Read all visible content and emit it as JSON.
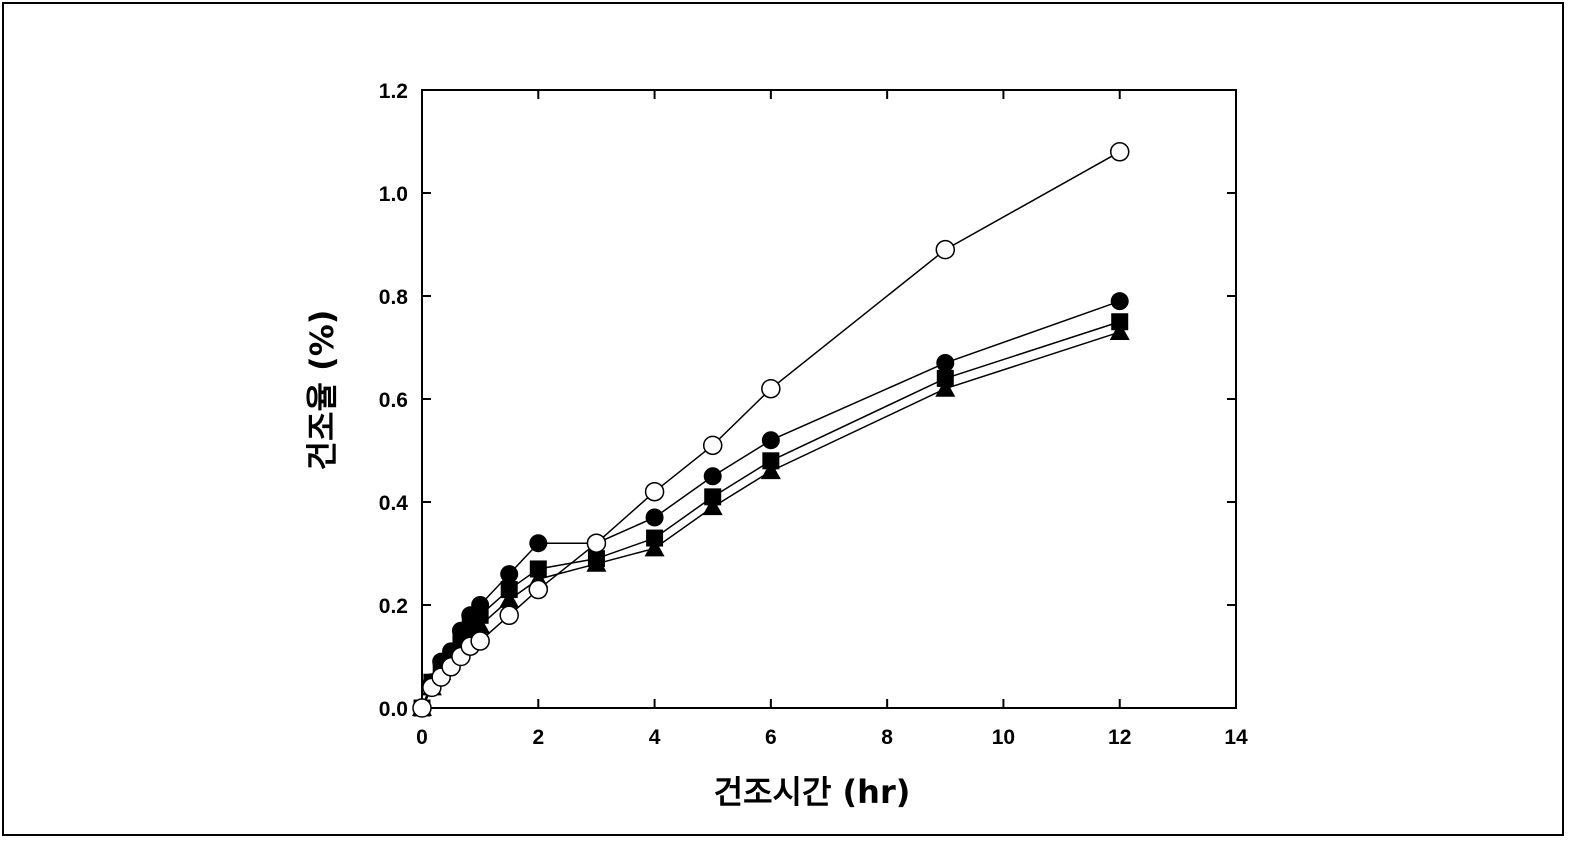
{
  "chart_data": {
    "type": "scatter",
    "xlabel": "건조시간 (hr)",
    "ylabel": "건조율 (%)",
    "xlim": [
      0,
      14
    ],
    "ylim": [
      0,
      1.2
    ],
    "xticks": [
      "0",
      "2",
      "4",
      "6",
      "8",
      "10",
      "12",
      "14"
    ],
    "yticks": [
      "0.0",
      "0.2",
      "0.4",
      "0.6",
      "0.8",
      "1.0",
      "1.2"
    ],
    "grid": false,
    "series": [
      {
        "marker": "open-circle",
        "x": [
          0,
          0.17,
          0.33,
          0.5,
          0.67,
          0.83,
          1,
          1.5,
          2,
          3,
          4,
          5,
          6,
          9,
          12
        ],
        "y": [
          0,
          0.04,
          0.06,
          0.08,
          0.1,
          0.12,
          0.13,
          0.18,
          0.23,
          0.32,
          0.42,
          0.51,
          0.62,
          0.89,
          1.08
        ]
      },
      {
        "marker": "filled-circle",
        "x": [
          0,
          0.17,
          0.33,
          0.5,
          0.67,
          0.83,
          1,
          1.5,
          2,
          3,
          4,
          5,
          6,
          9,
          12
        ],
        "y": [
          0,
          0.05,
          0.09,
          0.11,
          0.15,
          0.18,
          0.2,
          0.26,
          0.32,
          0.32,
          0.37,
          0.45,
          0.52,
          0.67,
          0.79
        ]
      },
      {
        "marker": "filled-square",
        "x": [
          0,
          0.17,
          0.33,
          0.5,
          0.67,
          0.83,
          1,
          1.5,
          2,
          3,
          4,
          5,
          6,
          9,
          12
        ],
        "y": [
          0,
          0.05,
          0.08,
          0.1,
          0.13,
          0.16,
          0.18,
          0.23,
          0.27,
          0.29,
          0.33,
          0.41,
          0.48,
          0.64,
          0.75
        ]
      },
      {
        "marker": "filled-triangle",
        "x": [
          0,
          0.17,
          0.33,
          0.5,
          0.67,
          0.83,
          1,
          1.5,
          2,
          3,
          4,
          5,
          6,
          9,
          12
        ],
        "y": [
          0,
          0.04,
          0.07,
          0.09,
          0.12,
          0.14,
          0.16,
          0.21,
          0.25,
          0.28,
          0.31,
          0.39,
          0.46,
          0.62,
          0.73
        ]
      }
    ]
  }
}
